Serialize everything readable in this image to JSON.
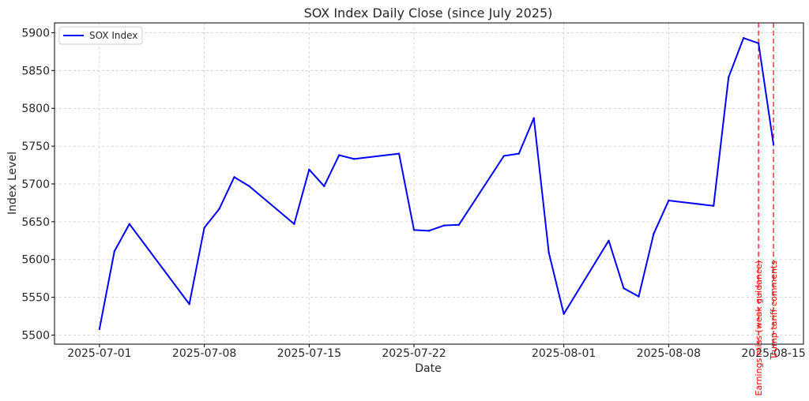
{
  "chart_data": {
    "type": "line",
    "title": "SOX Index Daily Close (since July 2025)",
    "xlabel": "Date",
    "ylabel": "Index Level",
    "grid": true,
    "legend_position": "top-left",
    "xlim": [
      "2025-06-28",
      "2025-08-17"
    ],
    "ylim": [
      5488,
      5913
    ],
    "x_ticks": [
      "2025-07-01",
      "2025-07-08",
      "2025-07-15",
      "2025-07-22",
      "2025-08-01",
      "2025-08-08",
      "2025-08-15"
    ],
    "y_ticks": [
      5500,
      5550,
      5600,
      5650,
      5700,
      5750,
      5800,
      5850,
      5900
    ],
    "series": [
      {
        "name": "SOX Index",
        "color": "#0000ff",
        "points": [
          {
            "x": "2025-07-01",
            "y": 5508
          },
          {
            "x": "2025-07-02",
            "y": 5611
          },
          {
            "x": "2025-07-03",
            "y": 5647
          },
          {
            "x": "2025-07-07",
            "y": 5541
          },
          {
            "x": "2025-07-08",
            "y": 5642
          },
          {
            "x": "2025-07-09",
            "y": 5667
          },
          {
            "x": "2025-07-10",
            "y": 5709
          },
          {
            "x": "2025-07-11",
            "y": 5697
          },
          {
            "x": "2025-07-14",
            "y": 5647
          },
          {
            "x": "2025-07-15",
            "y": 5719
          },
          {
            "x": "2025-07-16",
            "y": 5697
          },
          {
            "x": "2025-07-17",
            "y": 5738
          },
          {
            "x": "2025-07-18",
            "y": 5733
          },
          {
            "x": "2025-07-21",
            "y": 5740
          },
          {
            "x": "2025-07-22",
            "y": 5639
          },
          {
            "x": "2025-07-23",
            "y": 5638
          },
          {
            "x": "2025-07-24",
            "y": 5645
          },
          {
            "x": "2025-07-25",
            "y": 5646
          },
          {
            "x": "2025-07-28",
            "y": 5737
          },
          {
            "x": "2025-07-29",
            "y": 5740
          },
          {
            "x": "2025-07-30",
            "y": 5787
          },
          {
            "x": "2025-07-31",
            "y": 5609
          },
          {
            "x": "2025-08-01",
            "y": 5528
          },
          {
            "x": "2025-08-04",
            "y": 5625
          },
          {
            "x": "2025-08-05",
            "y": 5562
          },
          {
            "x": "2025-08-06",
            "y": 5551
          },
          {
            "x": "2025-08-07",
            "y": 5634
          },
          {
            "x": "2025-08-08",
            "y": 5678
          },
          {
            "x": "2025-08-11",
            "y": 5671
          },
          {
            "x": "2025-08-12",
            "y": 5841
          },
          {
            "x": "2025-08-13",
            "y": 5893
          },
          {
            "x": "2025-08-14",
            "y": 5886
          },
          {
            "x": "2025-08-15",
            "y": 5752
          }
        ]
      }
    ],
    "annotations": [
      {
        "x": "2025-08-14",
        "text": "Earnings miss (weak guidance)",
        "color": "#ff0000"
      },
      {
        "x": "2025-08-15",
        "text": "Trump tariff comments",
        "color": "#ff0000"
      }
    ]
  }
}
